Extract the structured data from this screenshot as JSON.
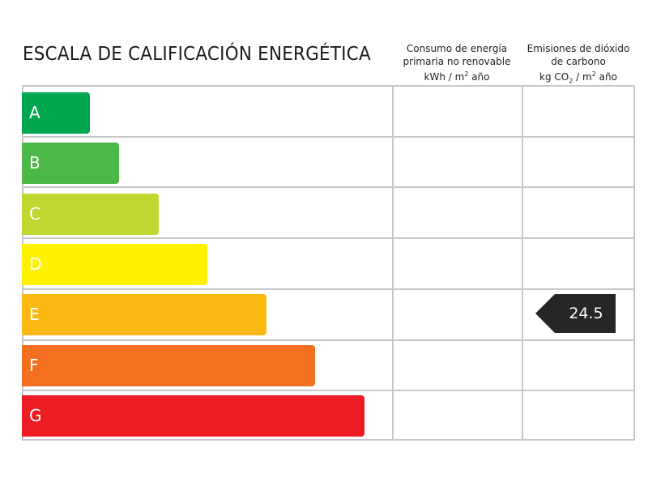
{
  "title": "ESCALA DE CALIFICACIÓN ENERGÉTICA",
  "columns": {
    "energy": {
      "line1": "Consumo de energía",
      "line2": "primaria no renovable",
      "line3_pre": "kWh / m",
      "line3_sup": "2",
      "line3_post": " año"
    },
    "emissions": {
      "line1": "Emisiones de dióxido",
      "line2": "de carbono",
      "line3_pre": "kg CO",
      "line3_sub": "2",
      "line3_mid": " / m",
      "line3_sup": "2",
      "line3_post": " año"
    }
  },
  "ratings": [
    {
      "label": "A",
      "color": "#00a650"
    },
    {
      "label": "B",
      "color": "#4cb848"
    },
    {
      "label": "C",
      "color": "#bfd730"
    },
    {
      "label": "D",
      "color": "#fff200"
    },
    {
      "label": "E",
      "color": "#fdb913"
    },
    {
      "label": "F",
      "color": "#f37021"
    },
    {
      "label": "G",
      "color": "#ed1c24"
    }
  ],
  "emissions_indicator": {
    "value": "24.5",
    "rating": "E",
    "color": "#262626"
  },
  "energy_indicator": null
}
